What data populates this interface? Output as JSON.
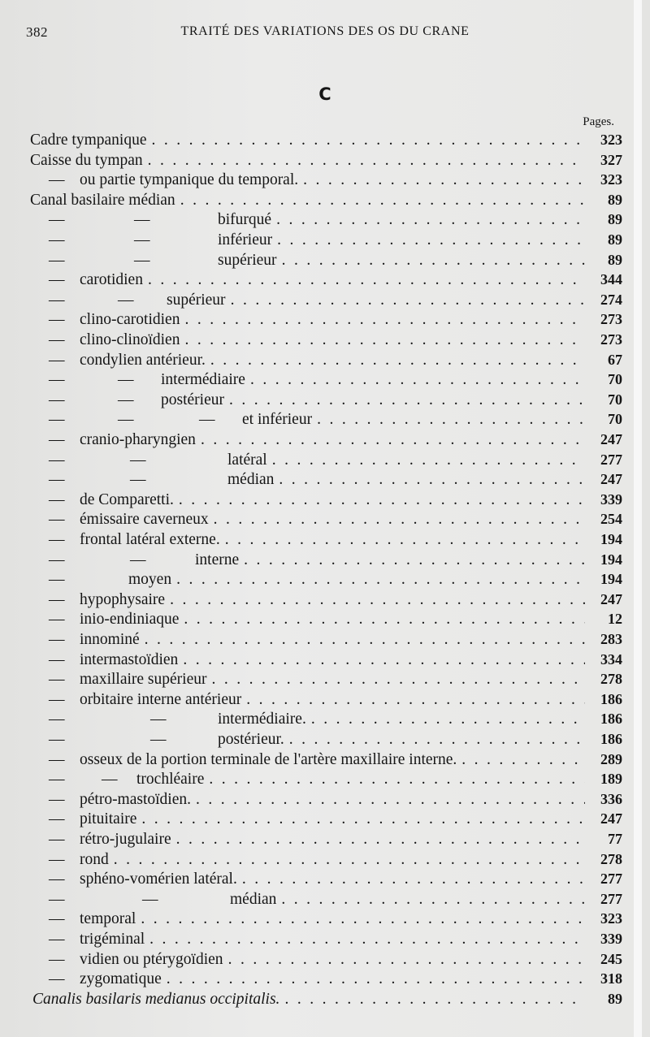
{
  "header": {
    "page_number": "382",
    "running_title": "TRAITÉ DES VARIATIONS DES OS DU CRANE"
  },
  "section_letter": "C",
  "pages_label": "Pages.",
  "entries": [
    {
      "dashes": [],
      "label": "Cadre tympanique",
      "page": "323"
    },
    {
      "dashes": [],
      "label": "Caisse du tympan",
      "page": "327"
    },
    {
      "dashes": [
        "—"
      ],
      "label": "ou partie tympanique du temporal.",
      "page": "323"
    },
    {
      "dashes": [],
      "label": "Canal  basilaire médian",
      "page": "89"
    },
    {
      "dashes": [
        "—",
        "—"
      ],
      "label": "bifurqué",
      "page": "89"
    },
    {
      "dashes": [
        "—",
        "—"
      ],
      "label": "inférieur",
      "page": "89"
    },
    {
      "dashes": [
        "—",
        "—"
      ],
      "label": "supérieur",
      "page": "89"
    },
    {
      "dashes": [
        "—"
      ],
      "label": "carotidien",
      "page": "344"
    },
    {
      "dashes": [
        "—",
        "—"
      ],
      "label": "supérieur",
      "page": "274"
    },
    {
      "dashes": [
        "—"
      ],
      "label": "clino-carotidien",
      "page": "273"
    },
    {
      "dashes": [
        "—"
      ],
      "label": "clino-clinoïdien",
      "page": "273"
    },
    {
      "dashes": [
        "—"
      ],
      "label": "condylien antérieur.",
      "page": "67"
    },
    {
      "dashes": [
        "—",
        "—"
      ],
      "label": "intermédiaire",
      "page": "70"
    },
    {
      "dashes": [
        "—",
        "—"
      ],
      "label": "postérieur",
      "page": "70"
    },
    {
      "dashes": [
        "—",
        "—",
        "—"
      ],
      "label": "et inférieur",
      "page": "70"
    },
    {
      "dashes": [
        "—"
      ],
      "label": "cranio-pharyngien",
      "page": "247"
    },
    {
      "dashes": [
        "—",
        "—"
      ],
      "label": "latéral",
      "page": "277"
    },
    {
      "dashes": [
        "—",
        "—"
      ],
      "label": "médian",
      "page": "247"
    },
    {
      "dashes": [
        "—"
      ],
      "label": "de Comparetti.",
      "page": "339"
    },
    {
      "dashes": [
        "—"
      ],
      "label": "émissaire caverneux",
      "page": "254"
    },
    {
      "dashes": [
        "—"
      ],
      "label": "frontal latéral externe.",
      "page": "194"
    },
    {
      "dashes": [
        "—",
        "—"
      ],
      "label": "interne",
      "page": "194"
    },
    {
      "dashes": [
        "—"
      ],
      "label": "moyen",
      "page": "194"
    },
    {
      "dashes": [
        "—"
      ],
      "label": "hypophysaire",
      "page": "247"
    },
    {
      "dashes": [
        "—"
      ],
      "label": "inio-endiniaque",
      "page": "12"
    },
    {
      "dashes": [
        "—"
      ],
      "label": "innominé",
      "page": "283"
    },
    {
      "dashes": [
        "—"
      ],
      "label": "intermastoïdien",
      "page": "334"
    },
    {
      "dashes": [
        "—"
      ],
      "label": "maxillaire supérieur",
      "page": "278"
    },
    {
      "dashes": [
        "—"
      ],
      "label": "orbitaire interne antérieur",
      "page": "186"
    },
    {
      "dashes": [
        "—",
        "—"
      ],
      "label": "intermédiaire.",
      "page": "186"
    },
    {
      "dashes": [
        "—",
        "—"
      ],
      "label": "postérieur.",
      "page": "186"
    },
    {
      "dashes": [
        "—"
      ],
      "label": "osseux de la portion terminale de l'artère maxillaire interne.",
      "page": "289"
    },
    {
      "dashes": [
        "—",
        "—"
      ],
      "label": "trochléaire",
      "page": "189"
    },
    {
      "dashes": [
        "—"
      ],
      "label": "pétro-mastoïdien.",
      "page": "336"
    },
    {
      "dashes": [
        "—"
      ],
      "label": "pituitaire",
      "page": "247"
    },
    {
      "dashes": [
        "—"
      ],
      "label": "rétro-jugulaire",
      "page": "77"
    },
    {
      "dashes": [
        "—"
      ],
      "label": "rond",
      "page": "278"
    },
    {
      "dashes": [
        "—"
      ],
      "label": "sphéno-vomérien latéral.",
      "page": "277"
    },
    {
      "dashes": [
        "—",
        "—"
      ],
      "label": "médian",
      "page": "277"
    },
    {
      "dashes": [
        "—"
      ],
      "label": "temporal",
      "page": "323"
    },
    {
      "dashes": [
        "—"
      ],
      "label": "trigéminal",
      "page": "339"
    },
    {
      "dashes": [
        "—"
      ],
      "label": "vidien ou ptérygoïdien",
      "page": "245"
    },
    {
      "dashes": [
        "—"
      ],
      "label": "zygomatique",
      "page": "318"
    },
    {
      "dashes": [],
      "label": "Canalis basilaris medianus occipitalis.",
      "page": "89",
      "italic": true
    }
  ]
}
